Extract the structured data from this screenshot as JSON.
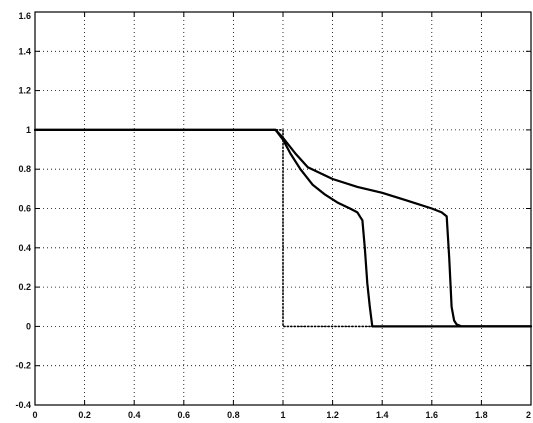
{
  "chart_data": {
    "type": "line",
    "title": "",
    "xlabel": "",
    "ylabel": "",
    "xlim": [
      0,
      2
    ],
    "ylim": [
      -0.4,
      1.6
    ],
    "xticks": [
      0,
      0.2,
      0.4,
      0.6,
      0.8,
      1,
      1.2,
      1.4,
      1.6,
      1.8,
      2
    ],
    "xtick_labels": [
      "0",
      "0.2",
      "0.4",
      "0.6",
      "0.8",
      "1",
      "1.2",
      "1.4",
      "1.6",
      "1.8",
      "2"
    ],
    "yticks": [
      -0.4,
      -0.2,
      0,
      0.2,
      0.4,
      0.6,
      0.8,
      1,
      1.2,
      1.4,
      1.6
    ],
    "ytick_labels": [
      "-0.4",
      "-0.2",
      "0",
      "0.2",
      "0.4",
      "0.6",
      "0.8",
      "1",
      "1.2",
      "1.4",
      "1.6"
    ],
    "grid": true,
    "line_color": "#000000",
    "series": [
      {
        "style": "dotted",
        "x": [
          0,
          1,
          1,
          2
        ],
        "y": [
          1,
          1,
          0,
          0
        ]
      },
      {
        "style": "solid",
        "x": [
          0,
          0.97,
          1.0,
          1.03,
          1.07,
          1.12,
          1.17,
          1.22,
          1.27,
          1.3,
          1.31,
          1.32,
          1.33,
          1.34,
          1.35,
          1.36,
          1.37,
          1.38,
          1.4,
          1.5,
          1.6,
          1.7,
          1.8,
          1.9,
          2.0
        ],
        "y": [
          1,
          1,
          0.95,
          0.88,
          0.8,
          0.72,
          0.67,
          0.63,
          0.6,
          0.58,
          0.56,
          0.54,
          0.4,
          0.22,
          0.1,
          0.0,
          0.0,
          0.0,
          0.0,
          0.0,
          0.0,
          0.0,
          0.0,
          0.0,
          0.0
        ]
      },
      {
        "style": "solid",
        "x": [
          0,
          0.97,
          1.0,
          1.05,
          1.1,
          1.2,
          1.3,
          1.4,
          1.5,
          1.6,
          1.64,
          1.66,
          1.67,
          1.68,
          1.69,
          1.7,
          1.72,
          1.8,
          1.9,
          2.0
        ],
        "y": [
          1,
          1,
          0.96,
          0.88,
          0.81,
          0.75,
          0.71,
          0.68,
          0.64,
          0.6,
          0.58,
          0.56,
          0.35,
          0.1,
          0.03,
          0.01,
          0.0,
          0.0,
          0.0,
          0.0
        ]
      }
    ]
  }
}
